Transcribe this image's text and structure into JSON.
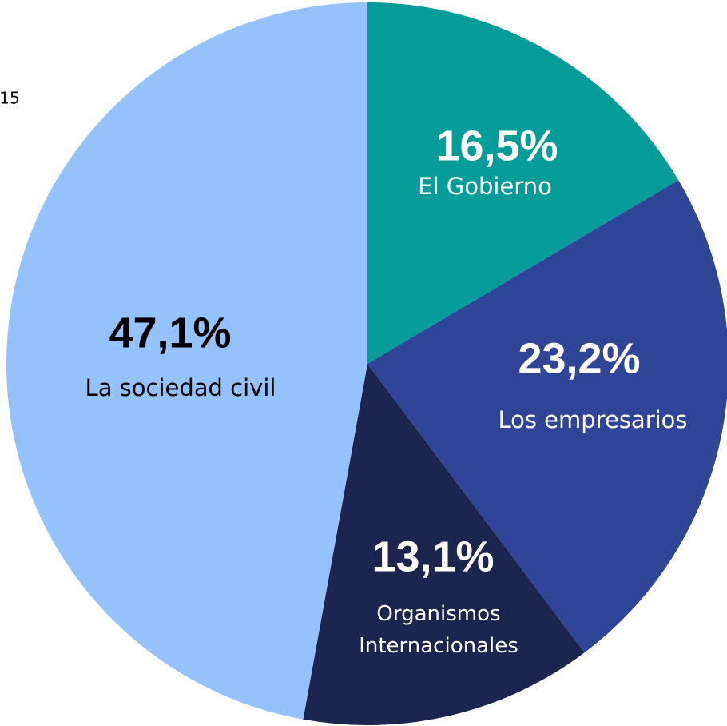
{
  "chart_data": {
    "type": "pie",
    "annotation": "15",
    "categories": [
      "El Gobierno",
      "Los empresarios",
      "Organismos\nInternacionales",
      "La sociedad civil"
    ],
    "values": [
      16.5,
      23.2,
      13.1,
      47.1
    ],
    "value_labels": [
      "16,5%",
      "23,2%",
      "13,1%",
      "47,1%"
    ],
    "colors": [
      "#069c9a",
      "#2f4598",
      "#1b2550",
      "#96c2fc"
    ]
  }
}
